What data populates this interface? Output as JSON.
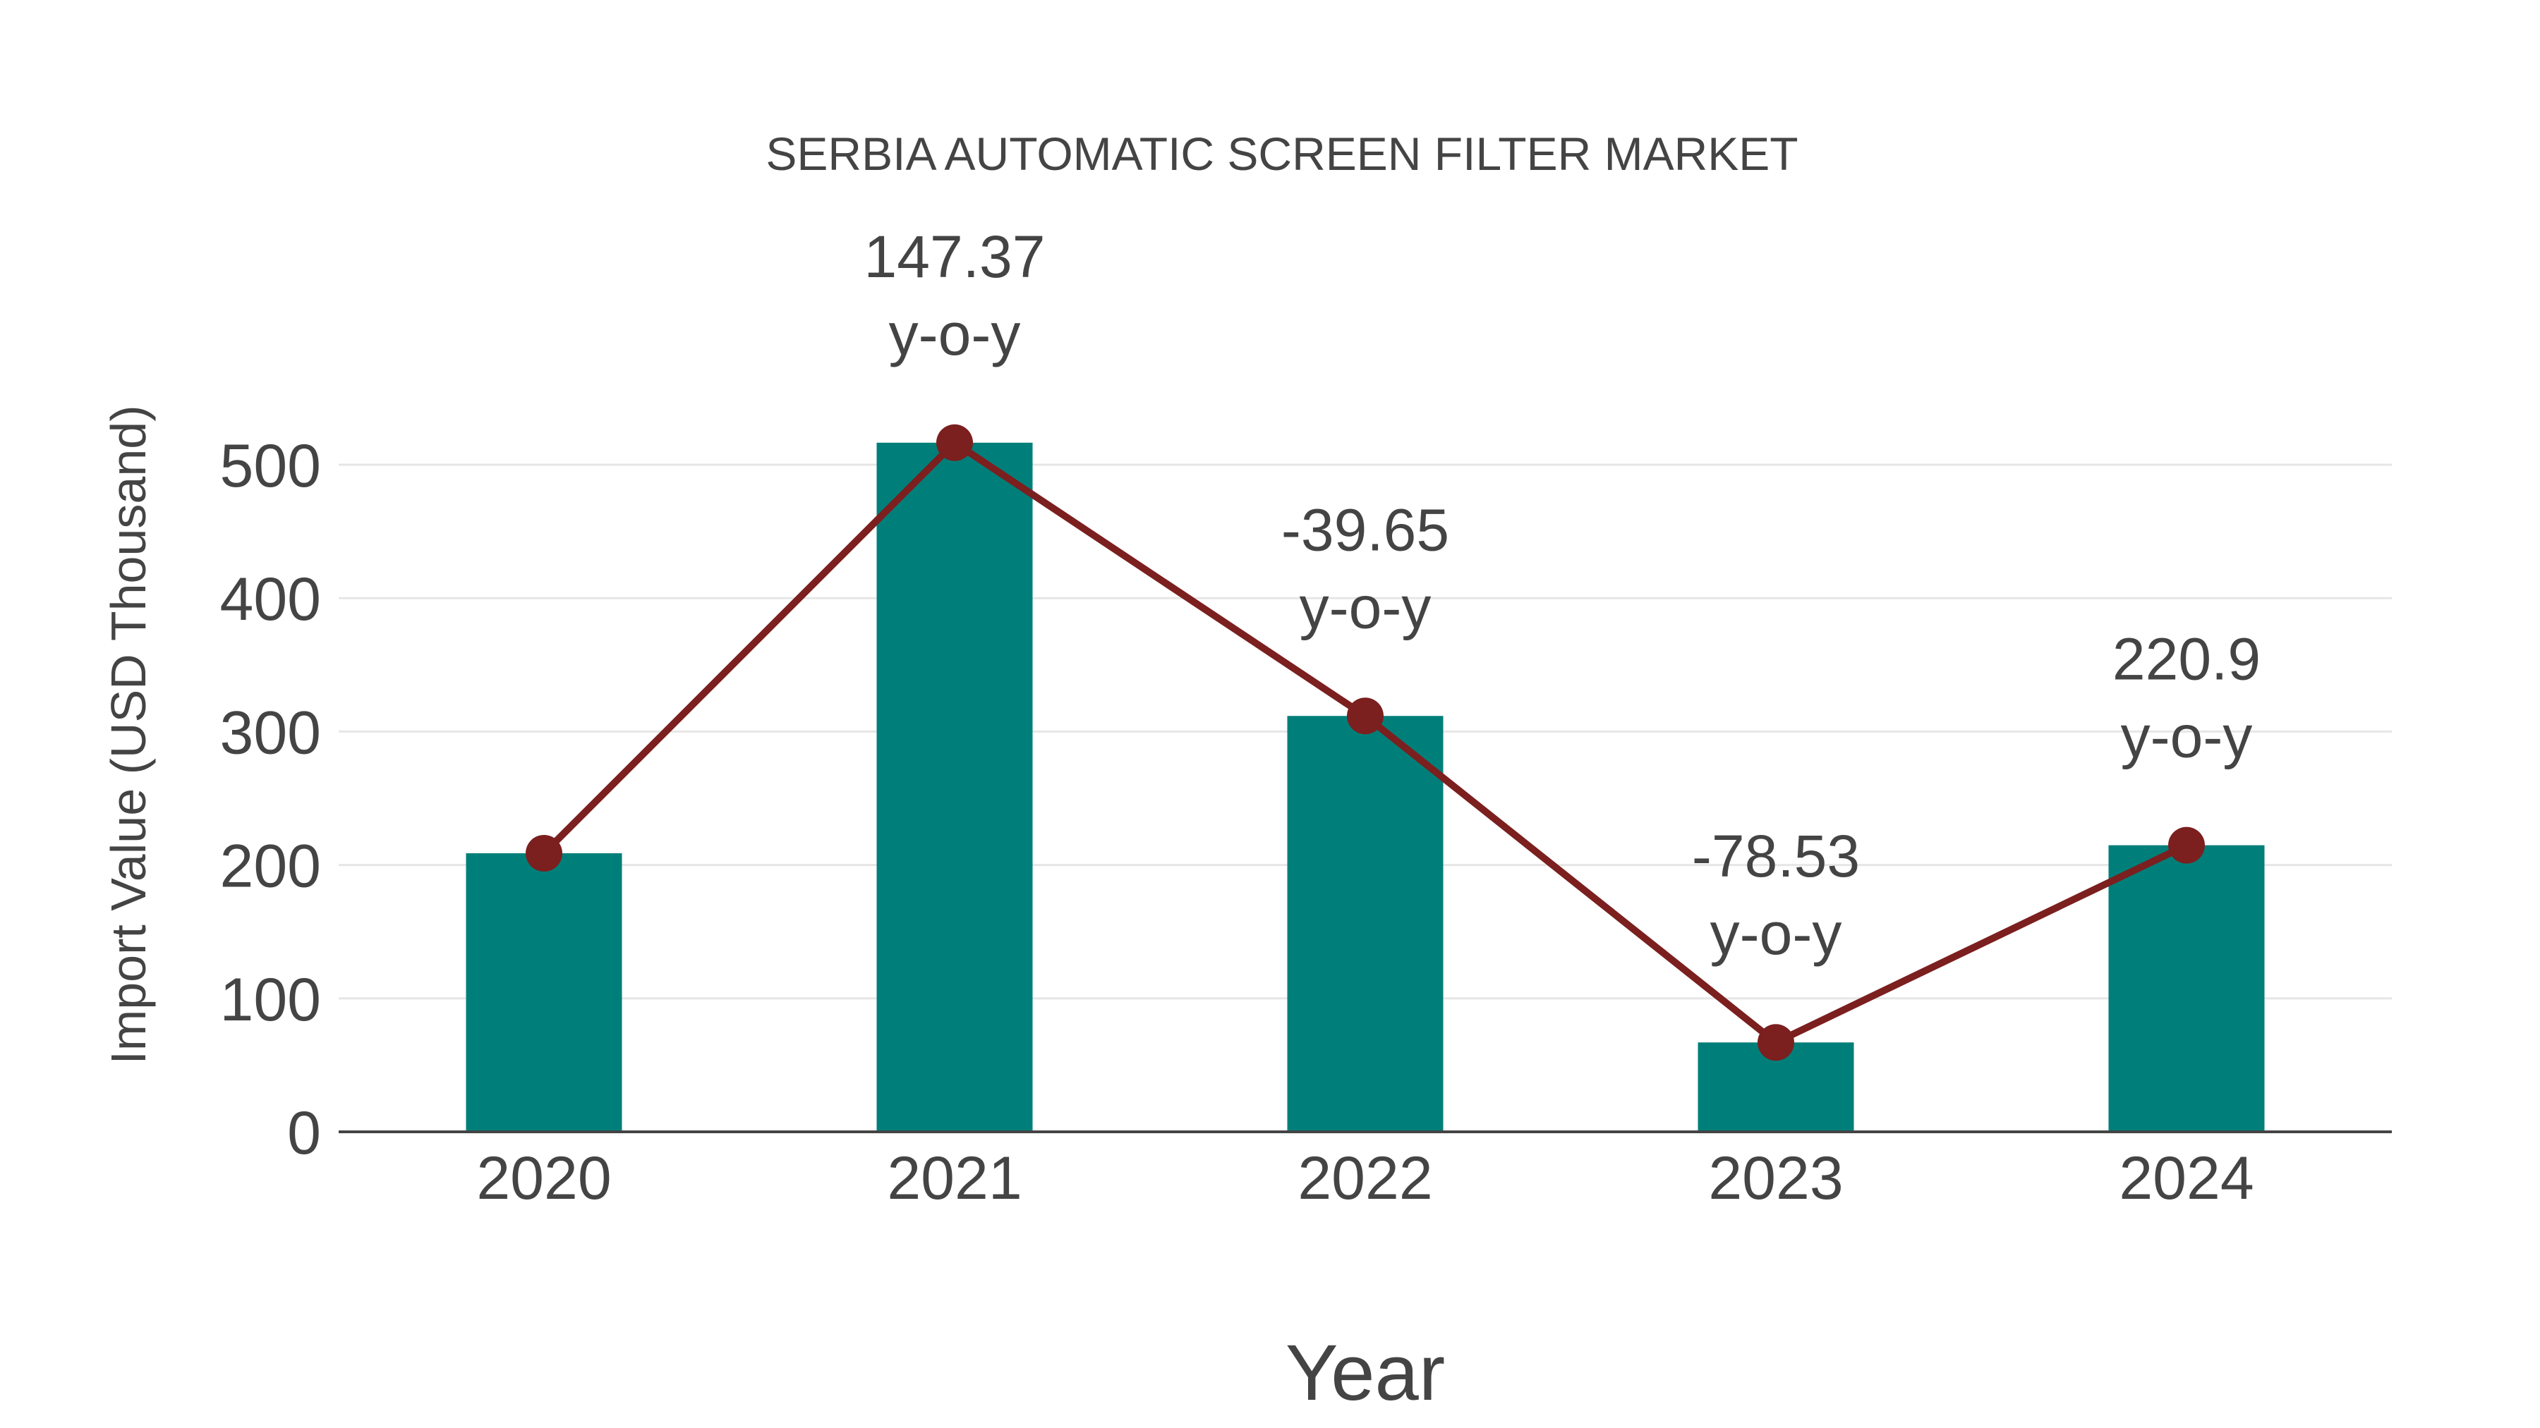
{
  "chart": {
    "title": "SERBIA AUTOMATIC SCREEN FILTER MARKET",
    "xlabel": "Year",
    "ylabel": "Import Value (USD Thousand)",
    "colors": {
      "bar": "#007f7a",
      "line": "#7b1f1f",
      "text": "#444444",
      "grid": "#e6e6e6",
      "axis": "#444444",
      "background": "#ffffff"
    }
  },
  "chart_data": {
    "type": "bar",
    "title": "SERBIA AUTOMATIC SCREEN FILTER MARKET",
    "xlabel": "Year",
    "ylabel": "Import Value (USD Thousand)",
    "categories": [
      "2020",
      "2021",
      "2022",
      "2023",
      "2024"
    ],
    "series": [
      {
        "name": "Import Value",
        "type": "bar",
        "values": [
          208.8,
          516.5,
          311.7,
          67.0,
          214.8
        ]
      },
      {
        "name": "Import Value (trend line)",
        "type": "line",
        "values": [
          208.8,
          516.5,
          311.7,
          67.0,
          214.8
        ]
      }
    ],
    "annotations": [
      {
        "category": "2021",
        "value": "147.37",
        "suffix": "y-o-y"
      },
      {
        "category": "2022",
        "value": "-39.65",
        "suffix": "y-o-y"
      },
      {
        "category": "2023",
        "value": "-78.53",
        "suffix": "y-o-y"
      },
      {
        "category": "2024",
        "value": "220.9",
        "suffix": "y-o-y"
      }
    ],
    "yticks": [
      0,
      100,
      200,
      300,
      400,
      500
    ],
    "ylim": [
      0,
      560
    ],
    "grid": true,
    "legend": "none"
  }
}
